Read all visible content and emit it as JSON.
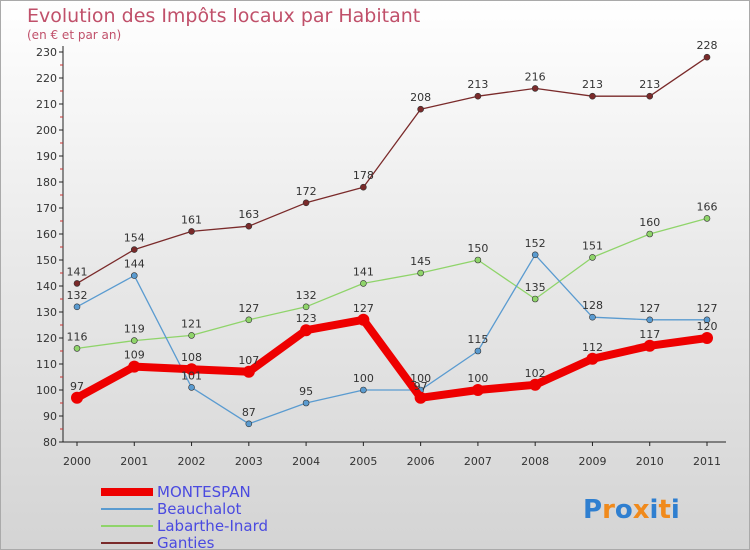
{
  "header": {
    "title": "Evolution des Impôts locaux par Habitant",
    "subtitle": "(en € et par an)"
  },
  "logo": {
    "text": "Proxiti"
  },
  "chart_data": {
    "type": "line",
    "title": "Evolution des Impôts locaux par Habitant",
    "subtitle": "(en € et par an)",
    "xlabel": "",
    "ylabel": "",
    "ylim": [
      80,
      230
    ],
    "yticks": [
      80,
      90,
      100,
      110,
      120,
      130,
      140,
      150,
      160,
      170,
      180,
      190,
      200,
      210,
      220,
      230
    ],
    "categories": [
      "2000",
      "2001",
      "2002",
      "2003",
      "2004",
      "2005",
      "2006",
      "2007",
      "2008",
      "2009",
      "2010",
      "2011"
    ],
    "grid": false,
    "legend_position": "bottom-left",
    "series": [
      {
        "name": "MONTESPAN",
        "color": "#ee0000",
        "values": [
          97,
          109,
          108,
          107,
          123,
          127,
          97,
          100,
          102,
          112,
          117,
          120
        ]
      },
      {
        "name": "Beauchalot",
        "color": "#5a9bd0",
        "values": [
          132,
          144,
          101,
          87,
          95,
          100,
          100,
          115,
          152,
          128,
          127,
          127
        ]
      },
      {
        "name": "Labarthe-Inard",
        "color": "#8fd46a",
        "values": [
          116,
          119,
          121,
          127,
          132,
          141,
          145,
          150,
          135,
          151,
          160,
          166
        ]
      },
      {
        "name": "Ganties",
        "color": "#7a2a2a",
        "values": [
          141,
          154,
          161,
          163,
          172,
          178,
          208,
          213,
          216,
          213,
          213,
          228
        ]
      }
    ]
  }
}
